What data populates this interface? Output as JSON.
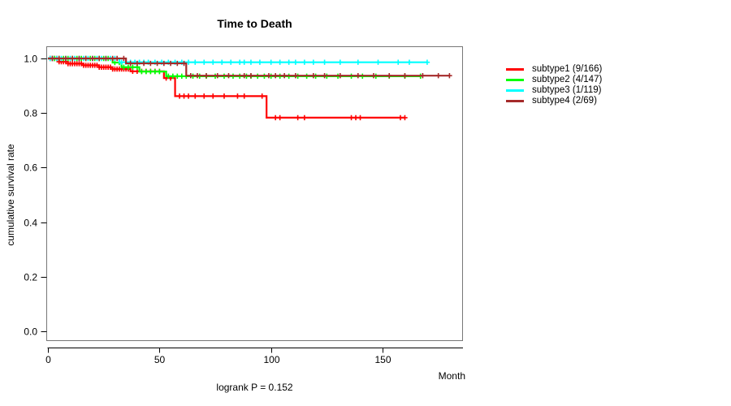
{
  "chart_data": {
    "type": "line",
    "variant": "kaplan-meier-step",
    "title": "Time to Death",
    "xlabel": "Month",
    "ylabel": "cumulative survival rate",
    "annotation": "logrank P = 0.152",
    "xlim": [
      0,
      186
    ],
    "ylim": [
      0.0,
      1.0
    ],
    "x_ticks": [
      0,
      50,
      100,
      150
    ],
    "y_ticks": [
      0.0,
      0.2,
      0.4,
      0.6,
      0.8,
      1.0
    ],
    "grid": false,
    "legend_position": "right",
    "axis_color": "#000000",
    "box_color": "#777777",
    "series": [
      {
        "id": "subtype1",
        "name": "subtype1 (9/166)",
        "color": "#FF0000",
        "steps": [
          [
            0,
            1.0
          ],
          [
            5,
            0.988
          ],
          [
            9,
            0.981
          ],
          [
            16,
            0.975
          ],
          [
            23,
            0.968
          ],
          [
            29,
            0.961
          ],
          [
            37,
            0.953
          ],
          [
            52,
            0.928
          ],
          [
            57,
            0.862
          ],
          [
            98,
            0.783
          ]
        ],
        "end": 160,
        "censors": [
          1,
          2,
          3,
          4,
          5,
          6,
          7,
          8,
          9,
          10,
          11,
          12,
          13,
          14,
          15,
          16,
          17,
          18,
          19,
          20,
          21,
          22,
          23,
          24,
          25,
          26,
          27,
          28,
          29,
          30,
          31,
          32,
          33,
          34,
          35,
          36,
          38,
          40,
          42,
          44,
          46,
          48,
          50,
          53,
          55,
          59,
          61,
          63,
          66,
          70,
          74,
          79,
          85,
          88,
          96,
          102,
          104,
          112,
          115,
          136,
          138,
          140,
          158,
          160
        ]
      },
      {
        "id": "subtype2",
        "name": "subtype2 (4/147)",
        "color": "#00FF00",
        "steps": [
          [
            0,
            1.0
          ],
          [
            29,
            0.985
          ],
          [
            33,
            0.968
          ],
          [
            41,
            0.952
          ],
          [
            53,
            0.935
          ]
        ],
        "end": 167,
        "censors": [
          2,
          3,
          5,
          7,
          9,
          11,
          13,
          15,
          17,
          19,
          21,
          23,
          25,
          27,
          30,
          32,
          34,
          36,
          38,
          40,
          42,
          44,
          46,
          48,
          50,
          54,
          56,
          58,
          60,
          62,
          65,
          68,
          71,
          75,
          79,
          83,
          86,
          89,
          91,
          94,
          97,
          100,
          104,
          108,
          112,
          116,
          120,
          125,
          130,
          136,
          141,
          147,
          153,
          160,
          167
        ]
      },
      {
        "id": "subtype3",
        "name": "subtype3 (1/119)",
        "color": "#00FFFF",
        "steps": [
          [
            0,
            1.0
          ],
          [
            32,
            0.986
          ]
        ],
        "end": 170,
        "censors": [
          1,
          2,
          4,
          6,
          8,
          10,
          12,
          14,
          16,
          18,
          20,
          22,
          24,
          26,
          28,
          30,
          33,
          35,
          37,
          39,
          41,
          43,
          45,
          48,
          51,
          54,
          57,
          60,
          63,
          66,
          70,
          74,
          78,
          82,
          86,
          88,
          91,
          95,
          100,
          104,
          108,
          111,
          115,
          119,
          124,
          131,
          139,
          148,
          157,
          162,
          170
        ]
      },
      {
        "id": "subtype4",
        "name": "subtype4 (2/69)",
        "color": "#A52A2A",
        "steps": [
          [
            0,
            1.0
          ],
          [
            35,
            0.982
          ],
          [
            62,
            0.937
          ]
        ],
        "end": 180,
        "censors": [
          2,
          5,
          8,
          11,
          14,
          17,
          20,
          23,
          26,
          29,
          31,
          34,
          37,
          40,
          43,
          46,
          49,
          52,
          55,
          58,
          61,
          64,
          67,
          71,
          76,
          81,
          88,
          91,
          99,
          102,
          106,
          111,
          119,
          124,
          131,
          139,
          146,
          153,
          160,
          168,
          175,
          180
        ]
      }
    ]
  }
}
